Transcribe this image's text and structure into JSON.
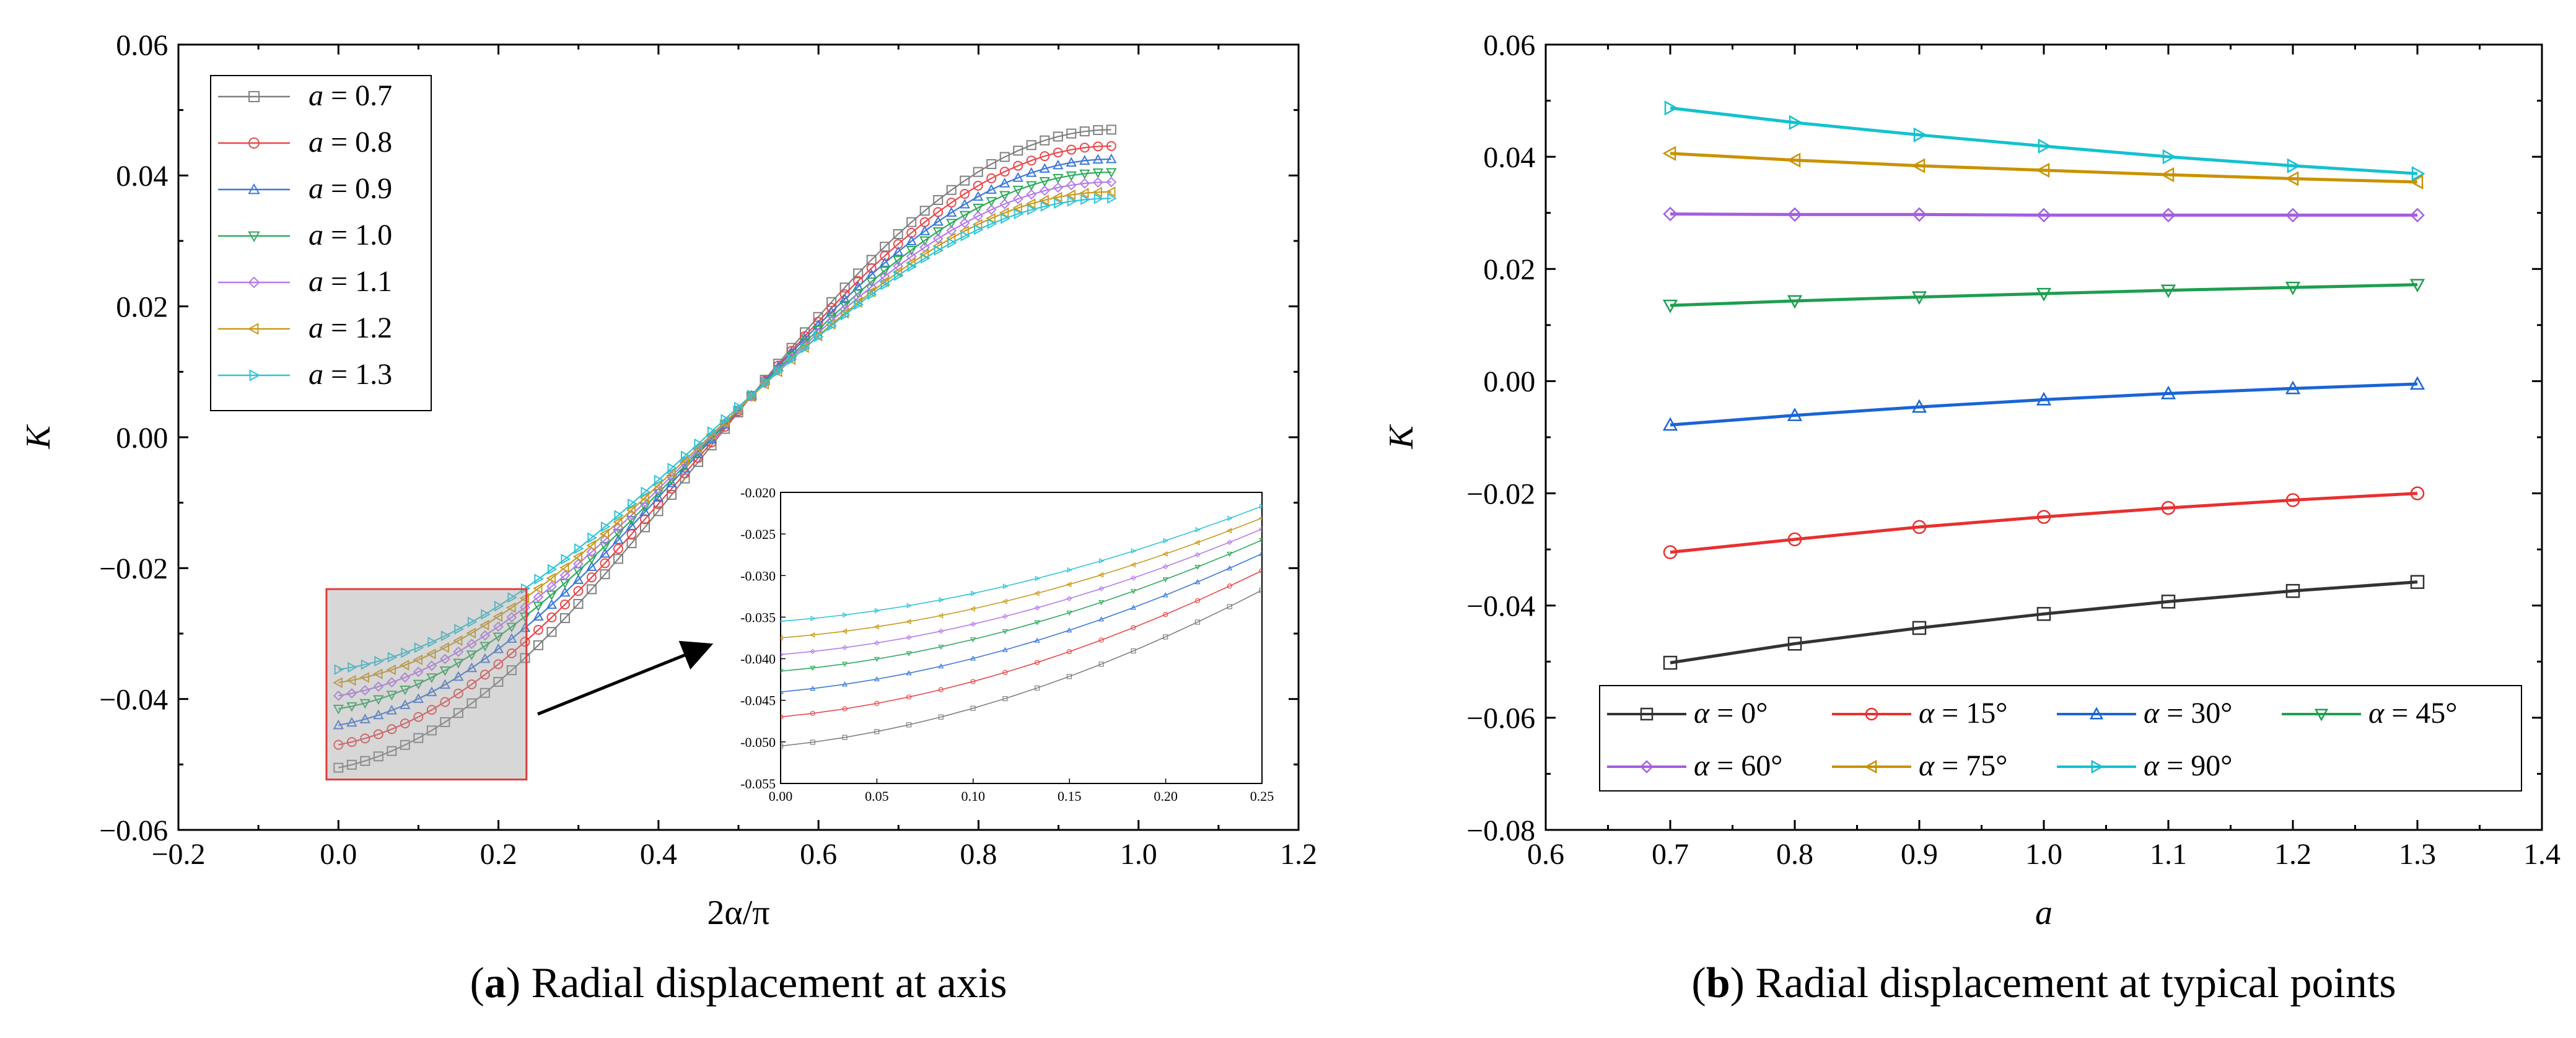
{
  "chart_data": [
    {
      "type": "line",
      "caption_letter": "a",
      "caption_text": ") Radial displacement at axis",
      "xlabel": "2α/π",
      "ylabel": "K",
      "xlim": [
        -0.2,
        1.2
      ],
      "ylim": [
        -0.06,
        0.06
      ],
      "xticks": [
        -0.2,
        0.0,
        0.2,
        0.4,
        0.6,
        0.8,
        1.0,
        1.2
      ],
      "yticks": [
        -0.06,
        -0.04,
        -0.02,
        0.0,
        0.02,
        0.04,
        0.06
      ],
      "xtick_labels": [
        "−0.2",
        "0.0",
        "0.2",
        "0.4",
        "0.6",
        "0.8",
        "1.0",
        "1.2"
      ],
      "ytick_labels": [
        "−0.06",
        "−0.04",
        "−0.02",
        "0.00",
        "0.02",
        "0.04",
        "0.06"
      ],
      "legend_position": "top-left",
      "legend_var": "a",
      "series": [
        {
          "name": "a = 0.7",
          "value_label": "0.7",
          "color": "#808080",
          "marker": "square",
          "y0": -0.0505,
          "y1": 0.047
        },
        {
          "name": "a = 0.8",
          "value_label": "0.8",
          "color": "#e8484b",
          "marker": "circle",
          "y0": -0.047,
          "y1": 0.0445
        },
        {
          "name": "a = 0.9",
          "value_label": "0.9",
          "color": "#3b78d8",
          "marker": "triangle-up",
          "y0": -0.044,
          "y1": 0.0425
        },
        {
          "name": "a = 1.0",
          "value_label": "1.0",
          "color": "#2eaa5c",
          "marker": "triangle-down",
          "y0": -0.0415,
          "y1": 0.0405
        },
        {
          "name": "a = 1.1",
          "value_label": "1.1",
          "color": "#b57bea",
          "marker": "diamond",
          "y0": -0.0395,
          "y1": 0.039
        },
        {
          "name": "a = 1.2",
          "value_label": "1.2",
          "color": "#c99a1f",
          "marker": "triangle-left",
          "y0": -0.0375,
          "y1": 0.0375
        },
        {
          "name": "a = 1.3",
          "value_label": "1.3",
          "color": "#2ec4d6",
          "marker": "triangle-right",
          "y0": -0.0355,
          "y1": 0.0365
        }
      ],
      "inset": {
        "xlim": [
          0.0,
          0.25
        ],
        "ylim": [
          -0.055,
          -0.02
        ],
        "xticks": [
          0.0,
          0.05,
          0.1,
          0.15,
          0.2,
          0.25
        ],
        "yticks": [
          -0.055,
          -0.05,
          -0.045,
          -0.04,
          -0.035,
          -0.03,
          -0.025,
          -0.02
        ],
        "xtick_labels": [
          "0.00",
          "0.05",
          "0.10",
          "0.15",
          "0.20",
          "0.25"
        ],
        "ytick_labels": [
          "-0.055",
          "-0.050",
          "-0.045",
          "-0.040",
          "-0.035",
          "-0.030",
          "-0.025",
          "-0.020"
        ],
        "highlight_box": {
          "x": [
            0.0,
            0.22
          ],
          "y": [
            -0.052,
            -0.023
          ]
        }
      }
    },
    {
      "type": "line",
      "caption_letter": "b",
      "caption_text": ") Radial displacement at typical points",
      "xlabel": "a",
      "ylabel": "K",
      "xlim": [
        0.6,
        1.4
      ],
      "ylim": [
        -0.08,
        0.06
      ],
      "xticks": [
        0.6,
        0.7,
        0.8,
        0.9,
        1.0,
        1.1,
        1.2,
        1.3,
        1.4
      ],
      "yticks": [
        -0.08,
        -0.06,
        -0.04,
        -0.02,
        0.0,
        0.02,
        0.04,
        0.06
      ],
      "xtick_labels": [
        "0.6",
        "0.7",
        "0.8",
        "0.9",
        "1.0",
        "1.1",
        "1.2",
        "1.3",
        "1.4"
      ],
      "ytick_labels": [
        "−0.08",
        "−0.06",
        "−0.04",
        "−0.02",
        "0.00",
        "0.02",
        "0.04",
        "0.06"
      ],
      "legend_position": "bottom",
      "legend_var": "α",
      "x": [
        0.7,
        0.8,
        0.9,
        1.0,
        1.1,
        1.2,
        1.3
      ],
      "series": [
        {
          "name": "α = 0°",
          "value_label": "0°",
          "color": "#333333",
          "marker": "square",
          "values": [
            -0.0502,
            -0.0468,
            -0.044,
            -0.0415,
            -0.0393,
            -0.0374,
            -0.0358
          ]
        },
        {
          "name": "α = 15°",
          "value_label": "15°",
          "color": "#e8302f",
          "marker": "circle",
          "values": [
            -0.0305,
            -0.0282,
            -0.026,
            -0.0242,
            -0.0226,
            -0.0212,
            -0.02
          ]
        },
        {
          "name": "α = 30°",
          "value_label": "30°",
          "color": "#1a64d6",
          "marker": "triangle-up",
          "values": [
            -0.0078,
            -0.0061,
            -0.0046,
            -0.0033,
            -0.0022,
            -0.0013,
            -0.0005
          ]
        },
        {
          "name": "α = 45°",
          "value_label": "45°",
          "color": "#1e9e50",
          "marker": "triangle-down",
          "values": [
            0.0135,
            0.0143,
            0.015,
            0.0156,
            0.0162,
            0.0167,
            0.0172
          ]
        },
        {
          "name": "α = 60°",
          "value_label": "60°",
          "color": "#a45ee0",
          "marker": "diamond",
          "values": [
            0.0298,
            0.0297,
            0.0297,
            0.0296,
            0.0296,
            0.0296,
            0.0296
          ]
        },
        {
          "name": "α = 75°",
          "value_label": "75°",
          "color": "#c99200",
          "marker": "triangle-left",
          "values": [
            0.0406,
            0.0394,
            0.0384,
            0.0376,
            0.0368,
            0.0361,
            0.0355
          ]
        },
        {
          "name": "α = 90°",
          "value_label": "90°",
          "color": "#14c1cf",
          "marker": "triangle-right",
          "values": [
            0.0487,
            0.0461,
            0.0439,
            0.0419,
            0.04,
            0.0384,
            0.037
          ]
        }
      ]
    }
  ]
}
